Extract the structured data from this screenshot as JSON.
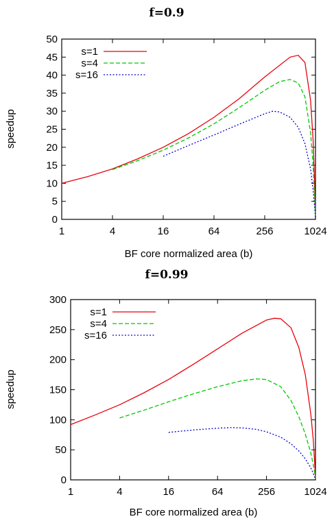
{
  "chart_data": [
    {
      "type": "line",
      "title": "f=0.9",
      "xlabel": "BF core normalized area (b)",
      "ylabel": "speedup",
      "xscale": "log2",
      "xticks": [
        1,
        4,
        16,
        64,
        256,
        1024
      ],
      "xtick_labels": [
        "1",
        "4",
        "16",
        "64",
        "256",
        "1024"
      ],
      "xlim": [
        1,
        1024
      ],
      "ylim": [
        0,
        50
      ],
      "yticks": [
        0,
        5,
        10,
        15,
        20,
        25,
        30,
        35,
        40,
        45,
        50
      ],
      "ytick_labels": [
        "0",
        "5",
        "10",
        "15",
        "20",
        "25",
        "30",
        "35",
        "40",
        "45",
        "50"
      ],
      "grid": false,
      "legend_position": "top-left",
      "series": [
        {
          "name": "s=1",
          "color": "#e8000b",
          "dash": "solid",
          "x": [
            1,
            2,
            4,
            8,
            16,
            32,
            64,
            128,
            256,
            512,
            640,
            768,
            896,
            960,
            1000,
            1024
          ],
          "y": [
            10,
            11.8,
            14,
            16.8,
            20,
            23.8,
            28.3,
            33.5,
            39.5,
            45.0,
            45.5,
            43.5,
            33.0,
            22.0,
            10.0,
            0.5
          ]
        },
        {
          "name": "s=4",
          "color": "#00c800",
          "dash": "dashed",
          "x": [
            4,
            8,
            16,
            32,
            64,
            128,
            256,
            384,
            512,
            640,
            768,
            896,
            960,
            1000,
            1024
          ],
          "y": [
            13.8,
            16.3,
            19.2,
            22.6,
            26.5,
            31.0,
            35.8,
            38.2,
            38.8,
            37.8,
            34.0,
            24.0,
            15.0,
            6.0,
            0.5
          ]
        },
        {
          "name": "s=16",
          "color": "#0000d0",
          "dash": "dotted",
          "x": [
            16,
            32,
            64,
            128,
            256,
            320,
            384,
            512,
            640,
            768,
            896,
            960,
            1000,
            1024
          ],
          "y": [
            17.5,
            20.5,
            23.4,
            26.4,
            29.3,
            30.0,
            29.8,
            28.3,
            25.5,
            21.0,
            14.0,
            8.0,
            3.5,
            0.5
          ]
        }
      ]
    },
    {
      "type": "line",
      "title": "f=0.99",
      "xlabel": "BF core normalized area (b)",
      "ylabel": "speedup",
      "xscale": "log2",
      "xticks": [
        1,
        4,
        16,
        64,
        256,
        1024
      ],
      "xtick_labels": [
        "1",
        "4",
        "16",
        "64",
        "256",
        "1024"
      ],
      "xlim": [
        1,
        1024
      ],
      "ylim": [
        0,
        300
      ],
      "yticks": [
        0,
        50,
        100,
        150,
        200,
        250,
        300
      ],
      "ytick_labels": [
        "0",
        "50",
        "100",
        "150",
        "200",
        "250",
        "300"
      ],
      "grid": false,
      "legend_position": "top-left",
      "series": [
        {
          "name": "s=1",
          "color": "#e8000b",
          "dash": "solid",
          "x": [
            1,
            2,
            4,
            8,
            16,
            32,
            64,
            128,
            256,
            320,
            384,
            512,
            640,
            768,
            896,
            960,
            1000,
            1024
          ],
          "y": [
            92,
            108,
            125,
            145,
            167,
            192,
            218,
            244,
            266,
            269,
            268,
            253,
            220,
            175,
            110,
            68,
            30,
            2
          ]
        },
        {
          "name": "s=4",
          "color": "#00c800",
          "dash": "dashed",
          "x": [
            4,
            8,
            16,
            32,
            64,
            128,
            192,
            256,
            384,
            512,
            640,
            768,
            896,
            960,
            1000,
            1024
          ],
          "y": [
            103,
            116,
            130,
            143,
            155,
            165,
            168,
            167,
            155,
            132,
            105,
            76,
            45,
            26,
            12,
            2
          ]
        },
        {
          "name": "s=16",
          "color": "#0000d0",
          "dash": "dotted",
          "x": [
            16,
            32,
            64,
            96,
            128,
            192,
            256,
            384,
            512,
            640,
            768,
            896,
            960,
            1000,
            1024
          ],
          "y": [
            79,
            83,
            86,
            87,
            86.5,
            84,
            80,
            71,
            60,
            48,
            35,
            20,
            11,
            5,
            1
          ]
        }
      ]
    }
  ]
}
